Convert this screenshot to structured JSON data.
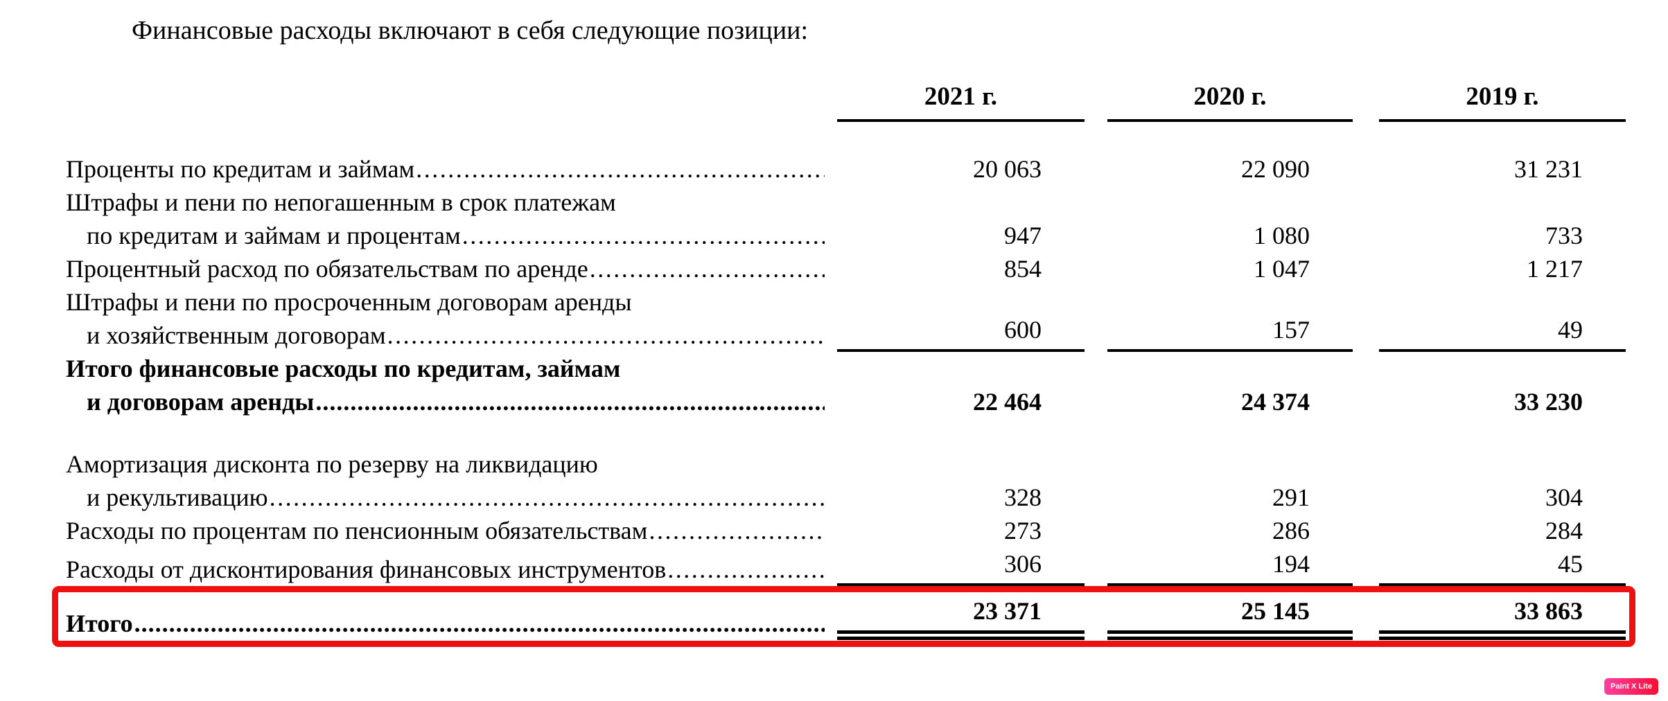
{
  "document": {
    "intro": "Финансовые расходы включают в себя следующие позиции:"
  },
  "table": {
    "columns": [
      "2021 г.",
      "2020 г.",
      "2019 г."
    ],
    "rows": [
      {
        "lines": [
          "Проценты по кредитам и займам"
        ],
        "values": [
          "20 063",
          "22 090",
          "31 231"
        ],
        "bold": false,
        "rule": "none",
        "gap_after": false
      },
      {
        "lines": [
          "Штрафы и пени по непогашенным в срок платежам",
          "по кредитам и займам и процентам"
        ],
        "values": [
          "947",
          "1 080",
          "733"
        ],
        "bold": false,
        "rule": "none",
        "gap_after": false
      },
      {
        "lines": [
          "Процентный расход по обязательствам по аренде"
        ],
        "values": [
          "854",
          "1 047",
          "1 217"
        ],
        "bold": false,
        "rule": "none",
        "gap_after": false
      },
      {
        "lines": [
          "Штрафы и пени по просроченным договорам аренды",
          "и хозяйственным договорам"
        ],
        "values": [
          "600",
          "157",
          "49"
        ],
        "bold": false,
        "rule": "single",
        "gap_after": false
      },
      {
        "lines": [
          "Итого финансовые расходы по кредитам, займам",
          "и договорам аренды"
        ],
        "values": [
          "22 464",
          "24 374",
          "33 230"
        ],
        "bold": true,
        "rule": "none",
        "gap_after": true
      },
      {
        "lines": [
          "Амортизация дисконта по резерву на ликвидацию",
          "и рекультивацию"
        ],
        "values": [
          "328",
          "291",
          "304"
        ],
        "bold": false,
        "rule": "none",
        "gap_after": false
      },
      {
        "lines": [
          "Расходы по процентам по пенсионным обязательствам"
        ],
        "values": [
          "273",
          "286",
          "284"
        ],
        "bold": false,
        "rule": "none",
        "gap_after": false
      },
      {
        "lines": [
          "Расходы от дисконтирования финансовых инструментов"
        ],
        "values": [
          "306",
          "194",
          "45"
        ],
        "bold": false,
        "rule": "single",
        "gap_after": false
      }
    ],
    "total": {
      "label": "Итого",
      "values": [
        "23 371",
        "25 145",
        "33 863"
      ]
    }
  },
  "annotation": {
    "highlight_color": "#ee1111"
  },
  "watermark": {
    "label": "Paint X Lite",
    "gradient_start": "#ff3fa0",
    "gradient_end": "#f50f35"
  }
}
